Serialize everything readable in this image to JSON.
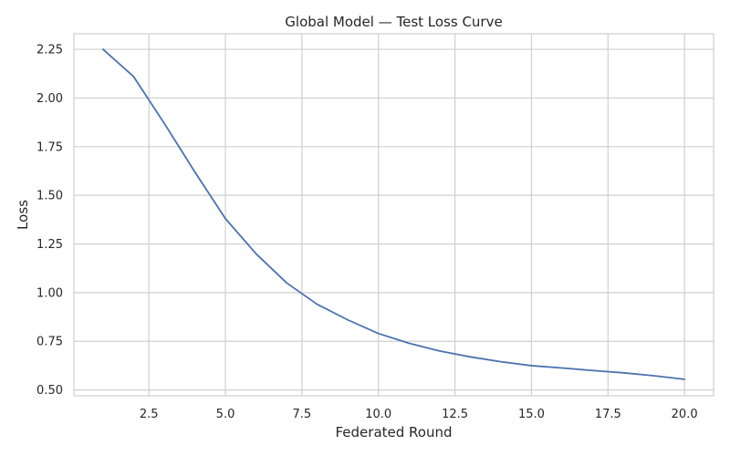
{
  "chart_data": {
    "type": "line",
    "title": "Global Model — Test Loss Curve",
    "xlabel": "Federated Round",
    "ylabel": "Loss",
    "xlim": [
      0.05,
      20.95
    ],
    "ylim": [
      0.47,
      2.33
    ],
    "x_ticks": [
      2.5,
      5.0,
      7.5,
      10.0,
      12.5,
      15.0,
      17.5,
      20.0
    ],
    "x_tick_labels": [
      "2.5",
      "5.0",
      "7.5",
      "10.0",
      "12.5",
      "15.0",
      "17.5",
      "20.0"
    ],
    "y_ticks": [
      0.5,
      0.75,
      1.0,
      1.25,
      1.5,
      1.75,
      2.0,
      2.25
    ],
    "y_tick_labels": [
      "0.50",
      "0.75",
      "1.00",
      "1.25",
      "1.50",
      "1.75",
      "2.00",
      "2.25"
    ],
    "grid": true,
    "series": [
      {
        "color": "#4c72b0",
        "x": [
          1,
          2,
          3,
          4,
          5,
          6,
          7,
          8,
          9,
          10,
          11,
          12,
          13,
          14,
          15,
          16,
          17,
          18,
          19,
          20
        ],
        "y": [
          2.25,
          2.11,
          1.87,
          1.62,
          1.38,
          1.2,
          1.05,
          0.94,
          0.86,
          0.79,
          0.74,
          0.7,
          0.67,
          0.645,
          0.625,
          0.613,
          0.6,
          0.588,
          0.573,
          0.555
        ]
      }
    ]
  }
}
